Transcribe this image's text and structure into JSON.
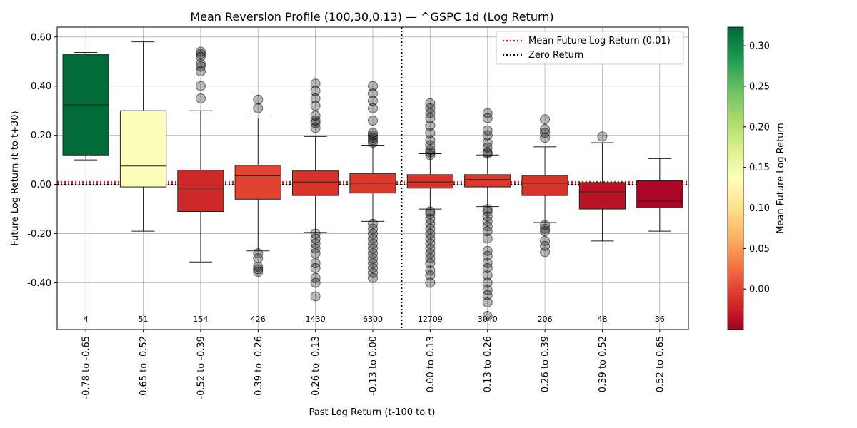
{
  "chart_data": {
    "type": "box",
    "title": "Mean Reversion Profile (100,30,0.13) — ^GSPC 1d (Log Return)",
    "xlabel": "Past Log Return (t-100 to t)",
    "ylabel": "Future Log Return (t to t+30)",
    "ylim": [
      -0.59,
      0.64
    ],
    "yticks": [
      -0.4,
      -0.2,
      0.0,
      0.2,
      0.4,
      0.6
    ],
    "ytick_labels": [
      "-0.40",
      "-0.20",
      "0.00",
      "0.20",
      "0.40",
      "0.60"
    ],
    "grid": true,
    "mean_future_return": 0.01,
    "zero_return": 0,
    "boundary_between_categories": [
      5,
      6
    ],
    "categories": [
      "-0.78 to -0.65",
      "-0.65 to -0.52",
      "-0.52 to -0.39",
      "-0.39 to -0.26",
      "-0.26 to -0.13",
      "-0.13 to 0.00",
      "0.00 to 0.13",
      "0.13 to 0.26",
      "0.26 to 0.39",
      "0.39 to 0.52",
      "0.52 to 0.65"
    ],
    "counts": [
      "4",
      "51",
      "154",
      "426",
      "1430",
      "6300",
      "12709",
      "3040",
      "206",
      "48",
      "36"
    ],
    "boxes": [
      {
        "whisker_low": 0.1,
        "q1": 0.12,
        "median": 0.325,
        "q3": 0.528,
        "whisker_high": 0.537,
        "mean": 0.32,
        "outliers": []
      },
      {
        "whisker_low": -0.19,
        "q1": -0.01,
        "median": 0.075,
        "q3": 0.3,
        "whisker_high": 0.58,
        "mean": 0.14,
        "outliers": []
      },
      {
        "whisker_low": -0.315,
        "q1": -0.11,
        "median": -0.015,
        "q3": 0.058,
        "whisker_high": 0.3,
        "mean": -0.02,
        "outliers": [
          0.35,
          0.4,
          0.46,
          0.48,
          0.49,
          0.52,
          0.53,
          0.54
        ]
      },
      {
        "whisker_low": -0.27,
        "q1": -0.06,
        "median": 0.035,
        "q3": 0.078,
        "whisker_high": 0.27,
        "mean": 0.0,
        "outliers": [
          -0.355,
          -0.345,
          -0.335,
          -0.3,
          -0.28,
          0.31,
          0.345
        ]
      },
      {
        "whisker_low": -0.195,
        "q1": -0.045,
        "median": 0.01,
        "q3": 0.055,
        "whisker_high": 0.195,
        "mean": -0.01,
        "outliers": [
          -0.455,
          -0.4,
          -0.38,
          -0.34,
          -0.32,
          -0.28,
          -0.26,
          -0.24,
          -0.22,
          -0.2,
          0.23,
          0.25,
          0.26,
          0.28,
          0.32,
          0.35,
          0.38,
          0.41
        ]
      },
      {
        "whisker_low": -0.15,
        "q1": -0.035,
        "median": 0.005,
        "q3": 0.045,
        "whisker_high": 0.16,
        "mean": -0.008,
        "outliers": [
          -0.38,
          -0.36,
          -0.34,
          -0.32,
          -0.3,
          -0.28,
          -0.26,
          -0.24,
          -0.22,
          -0.2,
          -0.18,
          -0.16,
          0.17,
          0.18,
          0.19,
          0.2,
          0.21,
          0.26,
          0.31,
          0.34,
          0.37,
          0.4
        ]
      },
      {
        "whisker_low": -0.1,
        "q1": -0.015,
        "median": 0.01,
        "q3": 0.04,
        "whisker_high": 0.125,
        "mean": -0.01,
        "outliers": [
          -0.4,
          -0.37,
          -0.35,
          -0.32,
          -0.3,
          -0.28,
          -0.26,
          -0.24,
          -0.22,
          -0.2,
          -0.18,
          -0.16,
          -0.14,
          -0.12,
          -0.11,
          0.12,
          0.13,
          0.14,
          0.16,
          0.18,
          0.21,
          0.24,
          0.27,
          0.29,
          0.31,
          0.33
        ]
      },
      {
        "whisker_low": -0.09,
        "q1": -0.01,
        "median": 0.02,
        "q3": 0.04,
        "whisker_high": 0.12,
        "mean": -0.008,
        "outliers": [
          -0.535,
          -0.48,
          -0.45,
          -0.43,
          -0.4,
          -0.37,
          -0.34,
          -0.32,
          -0.29,
          -0.27,
          -0.22,
          -0.19,
          -0.17,
          -0.15,
          -0.13,
          -0.11,
          -0.1,
          0.125,
          0.13,
          0.15,
          0.17,
          0.2,
          0.22,
          0.27,
          0.29
        ]
      },
      {
        "whisker_low": -0.155,
        "q1": -0.045,
        "median": 0.005,
        "q3": 0.037,
        "whisker_high": 0.153,
        "mean": -0.01,
        "outliers": [
          -0.275,
          -0.25,
          -0.23,
          -0.19,
          -0.18,
          -0.165,
          0.19,
          0.21,
          0.225,
          0.265
        ]
      },
      {
        "whisker_low": -0.23,
        "q1": -0.1,
        "median": -0.03,
        "q3": 0.008,
        "whisker_high": 0.17,
        "mean": -0.035,
        "outliers": [
          0.195
        ]
      },
      {
        "whisker_low": -0.19,
        "q1": -0.095,
        "median": -0.068,
        "q3": 0.015,
        "whisker_high": 0.105,
        "mean": -0.045,
        "outliers": []
      }
    ],
    "legend": {
      "placement": "top-right",
      "entries": [
        {
          "label": "Mean Future Log Return (0.01)",
          "style": "dotted",
          "color": "#e31a1c"
        },
        {
          "label": "Zero Return",
          "style": "dotted",
          "color": "#000000"
        }
      ]
    },
    "colorbar": {
      "label": "Mean Future Log Return",
      "range": [
        -0.05,
        0.323
      ],
      "ticks": [
        0.0,
        0.05,
        0.1,
        0.15,
        0.2,
        0.25,
        0.3
      ],
      "tick_labels": [
        "0.00",
        "0.05",
        "0.10",
        "0.15",
        "0.20",
        "0.25",
        "0.30"
      ],
      "colormap": "RdYlGn"
    }
  }
}
